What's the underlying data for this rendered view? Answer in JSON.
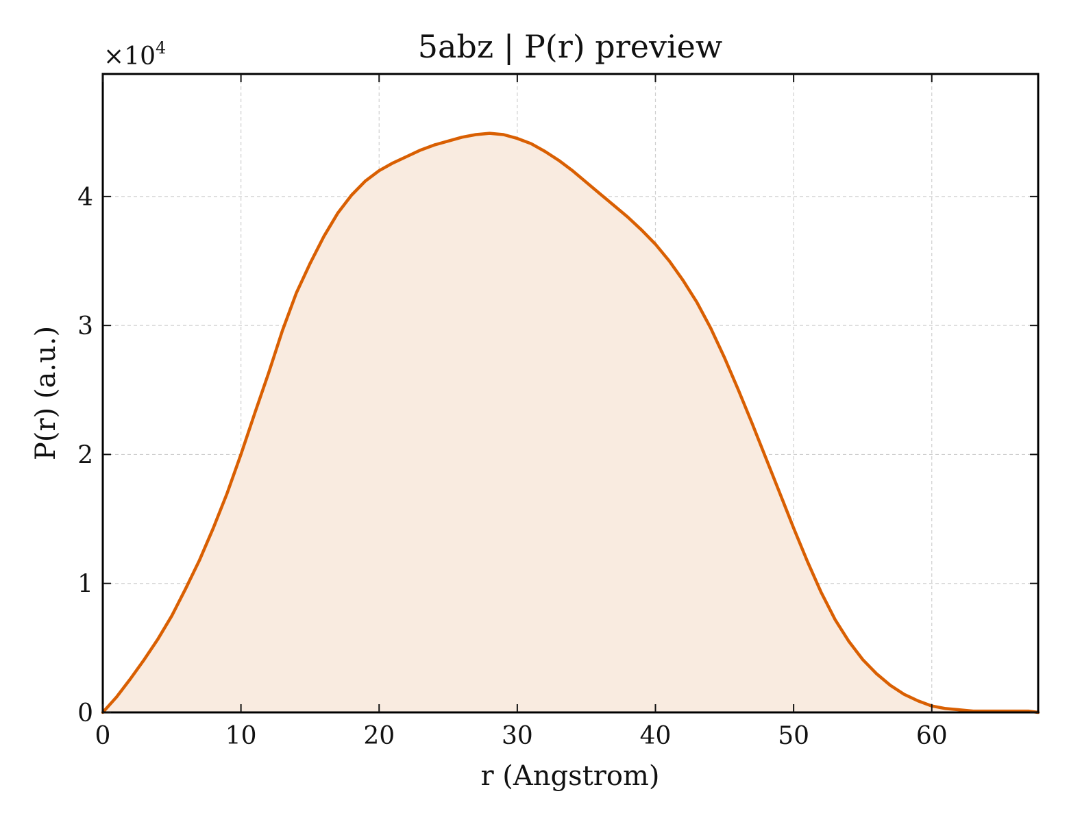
{
  "chart_data": {
    "type": "area",
    "title": "5abz | P(r) preview",
    "xlabel": "r (Angstrom)",
    "ylabel": "P(r) (a.u.)",
    "y_multiplier": "×10",
    "y_multiplier_exp": "4",
    "xlim": [
      0,
      67.7
    ],
    "ylim": [
      0,
      4.95
    ],
    "x_ticks": [
      0,
      10,
      20,
      30,
      40,
      50,
      60
    ],
    "y_ticks": [
      0,
      1,
      2,
      3,
      4
    ],
    "x_tick_labels": [
      "0",
      "10",
      "20",
      "30",
      "40",
      "50",
      "60"
    ],
    "y_tick_labels": [
      "0",
      "1",
      "2",
      "3",
      "4"
    ],
    "grid": true,
    "line_color": "#d95f02",
    "fill_color": "#f9ebe0",
    "series": [
      {
        "x": [
          0,
          1,
          2,
          3,
          4,
          5,
          6,
          7,
          8,
          9,
          10,
          11,
          12,
          13,
          14,
          15,
          16,
          17,
          18,
          19,
          20,
          21,
          22,
          23,
          24,
          25,
          26,
          27,
          28,
          29,
          30,
          31,
          32,
          33,
          34,
          35,
          36,
          37,
          38,
          39,
          40,
          41,
          42,
          43,
          44,
          45,
          46,
          47,
          48,
          49,
          50,
          51,
          52,
          53,
          54,
          55,
          56,
          57,
          58,
          59,
          60,
          61,
          62,
          63,
          64,
          65,
          66,
          67,
          67.7
        ],
        "y": [
          0,
          0.12,
          0.26,
          0.41,
          0.57,
          0.75,
          0.96,
          1.18,
          1.43,
          1.7,
          2.0,
          2.32,
          2.63,
          2.96,
          3.25,
          3.48,
          3.69,
          3.87,
          4.01,
          4.12,
          4.2,
          4.26,
          4.31,
          4.36,
          4.4,
          4.43,
          4.46,
          4.48,
          4.49,
          4.48,
          4.45,
          4.41,
          4.35,
          4.28,
          4.2,
          4.11,
          4.02,
          3.93,
          3.84,
          3.74,
          3.63,
          3.5,
          3.35,
          3.18,
          2.98,
          2.75,
          2.5,
          2.24,
          1.97,
          1.7,
          1.43,
          1.17,
          0.93,
          0.72,
          0.55,
          0.41,
          0.3,
          0.21,
          0.14,
          0.09,
          0.05,
          0.03,
          0.02,
          0.01,
          0.01,
          0.01,
          0.01,
          0.01,
          0
        ]
      }
    ]
  }
}
